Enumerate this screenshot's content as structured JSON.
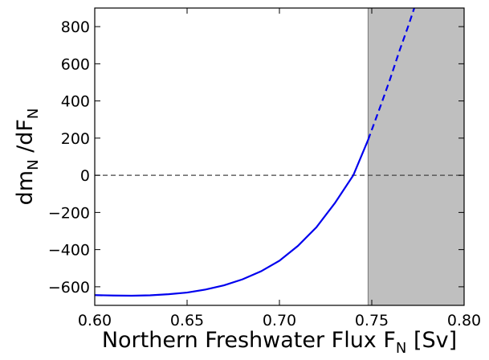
{
  "chart_data": {
    "type": "line",
    "xlabel": [
      "Northern Freshwater Flux F",
      "N",
      " [Sv]"
    ],
    "ylabel": [
      "dm",
      "N",
      " /dF",
      "N"
    ],
    "xlim": [
      0.6,
      0.8
    ],
    "ylim": [
      -700,
      900
    ],
    "xticks": [
      {
        "value": 0.6,
        "label": "0.60"
      },
      0.65,
      {
        "value": 0.7,
        "label": "0.70"
      },
      0.75,
      {
        "value": 0.8,
        "label": "0.80"
      }
    ],
    "yticks": [
      {
        "value": -600,
        "label": "−600"
      },
      {
        "value": -400,
        "label": "−400"
      },
      {
        "value": -200,
        "label": "−200"
      },
      0,
      200,
      400,
      600,
      800
    ],
    "series": [
      {
        "color": "#0000ee",
        "dash": false,
        "x": [
          0.6,
          0.61,
          0.62,
          0.63,
          0.64,
          0.65,
          0.66,
          0.67,
          0.68,
          0.69,
          0.7,
          0.71,
          0.72,
          0.73,
          0.74,
          0.748
        ],
        "values": [
          -645,
          -647,
          -648,
          -646,
          -640,
          -631,
          -615,
          -592,
          -560,
          -517,
          -460,
          -380,
          -280,
          -150,
          0,
          190
        ]
      },
      {
        "color": "#0000ee",
        "dash": true,
        "x": [
          0.748,
          0.755,
          0.76,
          0.765,
          0.77,
          0.773
        ],
        "values": [
          190,
          380,
          520,
          670,
          810,
          900
        ]
      }
    ],
    "shaded_region": [
      0.748,
      0.8
    ],
    "shade_color": "#bfbfbf",
    "hline": 0
  }
}
